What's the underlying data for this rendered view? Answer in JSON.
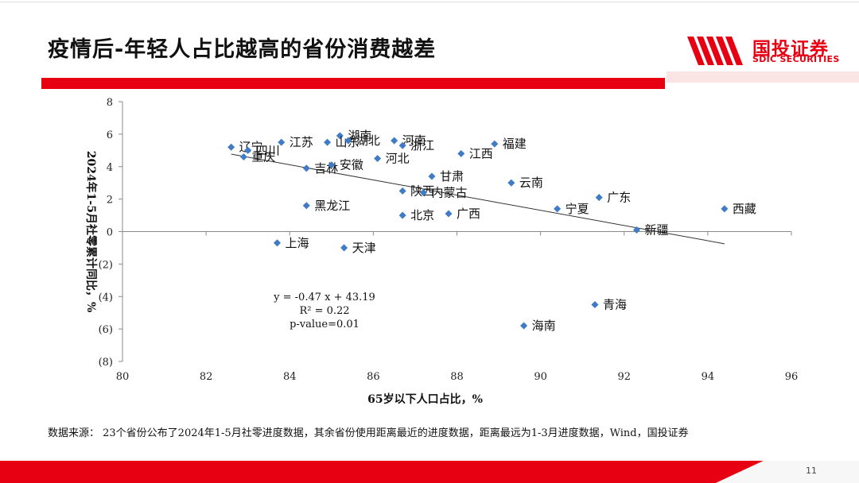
{
  "slide": {
    "title": "疫情后-年轻人占比越高的省份消费越差",
    "source_note": "数据来源： 23个省份公布了2024年1-5月社零进度数据，其余省份使用距离最近的进度数据，距离最远为1-3月进度数据，Wind，国投证券",
    "page_number": "11",
    "accent_color": "#e60012"
  },
  "logo": {
    "name_cn": "国投证券",
    "name_en": "SDIC SECURITIES"
  },
  "chart_data": {
    "type": "scatter",
    "xlabel": "65岁以下人口占比，%",
    "ylabel": "2024年1-5月社零累计同比，%",
    "xlim": [
      80,
      96
    ],
    "ylim": [
      -8,
      8
    ],
    "x_ticks": [
      "80",
      "82",
      "84",
      "86",
      "88",
      "90",
      "92",
      "94",
      "96"
    ],
    "y_ticks": [
      "8",
      "6",
      "4",
      "2",
      "0",
      "(2)",
      "(4)",
      "(6)",
      "(8)"
    ],
    "marker_color": "#3f7cc5",
    "points": [
      {
        "label": "辽宁",
        "x": 82.6,
        "y": 5.2
      },
      {
        "label": "四川",
        "x": 83.0,
        "y": 5.0
      },
      {
        "label": "重庆",
        "x": 82.9,
        "y": 4.6
      },
      {
        "label": "江苏",
        "x": 83.8,
        "y": 5.5
      },
      {
        "label": "湖南",
        "x": 85.2,
        "y": 5.9
      },
      {
        "label": "山东",
        "x": 84.9,
        "y": 5.5
      },
      {
        "label": "湖北",
        "x": 85.4,
        "y": 5.6
      },
      {
        "label": "河南",
        "x": 86.5,
        "y": 5.6
      },
      {
        "label": "浙江",
        "x": 86.7,
        "y": 5.3
      },
      {
        "label": "福建",
        "x": 88.9,
        "y": 5.4
      },
      {
        "label": "江西",
        "x": 88.1,
        "y": 4.8
      },
      {
        "label": "河北",
        "x": 86.1,
        "y": 4.5
      },
      {
        "label": "吉林",
        "x": 84.4,
        "y": 3.9
      },
      {
        "label": "安徽",
        "x": 85.0,
        "y": 4.1
      },
      {
        "label": "甘肃",
        "x": 87.4,
        "y": 3.4
      },
      {
        "label": "云南",
        "x": 89.3,
        "y": 3.0
      },
      {
        "label": "陕西",
        "x": 86.7,
        "y": 2.5
      },
      {
        "label": "内蒙古",
        "x": 87.2,
        "y": 2.4
      },
      {
        "label": "广东",
        "x": 91.4,
        "y": 2.1
      },
      {
        "label": "黑龙江",
        "x": 84.4,
        "y": 1.6
      },
      {
        "label": "宁夏",
        "x": 90.4,
        "y": 1.4
      },
      {
        "label": "西藏",
        "x": 94.4,
        "y": 1.4
      },
      {
        "label": "北京",
        "x": 86.7,
        "y": 1.0
      },
      {
        "label": "广西",
        "x": 87.8,
        "y": 1.1
      },
      {
        "label": "新疆",
        "x": 92.3,
        "y": 0.1
      },
      {
        "label": "上海",
        "x": 83.7,
        "y": -0.7
      },
      {
        "label": "天津",
        "x": 85.3,
        "y": -1.0
      },
      {
        "label": "青海",
        "x": 91.3,
        "y": -4.5
      },
      {
        "label": "海南",
        "x": 89.6,
        "y": -5.8
      }
    ],
    "trendline": {
      "x": [
        82.6,
        94.4
      ],
      "y": [
        4.77,
        -0.75
      ]
    },
    "annotation": [
      "y = -0.47 x + 43.19",
      "R² = 0.22",
      "p-value=0.01"
    ]
  }
}
